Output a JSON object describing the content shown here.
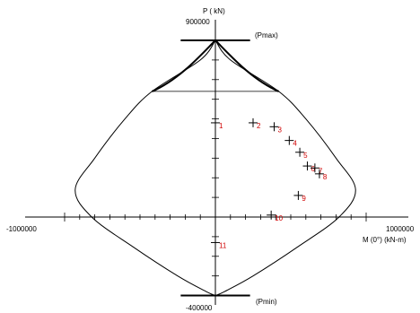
{
  "chart_data": {
    "type": "scatter",
    "ylabel": "P ( kN)",
    "xlabel": "M (0°) (kN-m)",
    "x_tick_labels": {
      "min": "-1000000",
      "max": "1000000"
    },
    "y_tick_labels": {
      "max": "900000",
      "min": "-400000"
    },
    "xlim": [
      -1000000,
      1000000
    ],
    "ylim": [
      -400000,
      900000
    ],
    "pmax_label": "(Pmax)",
    "pmin_label": "(Pmin)",
    "pmax_value": 900000,
    "pmin_value": -400000,
    "cutoff_value": 640000,
    "cutoff_moment": 420000,
    "cap_moment": 230000,
    "interaction_curve": [
      {
        "m": 0,
        "p": 900000
      },
      {
        "m": 100000,
        "p": 800000
      },
      {
        "m": 420000,
        "p": 640000
      },
      {
        "m": 600000,
        "p": 500000
      },
      {
        "m": 800000,
        "p": 300000
      },
      {
        "m": 930000,
        "p": 140000
      },
      {
        "m": 820000,
        "p": 0
      },
      {
        "m": 550000,
        "p": -150000
      },
      {
        "m": 250000,
        "p": -300000
      },
      {
        "m": 60000,
        "p": -380000
      },
      {
        "m": 0,
        "p": -400000
      }
    ],
    "points": [
      {
        "label": "1",
        "m": 0,
        "p": 480000
      },
      {
        "label": "2",
        "m": 250000,
        "p": 480000
      },
      {
        "label": "3",
        "m": 390000,
        "p": 460000
      },
      {
        "label": "4",
        "m": 490000,
        "p": 390000
      },
      {
        "label": "5",
        "m": 560000,
        "p": 330000
      },
      {
        "label": "6",
        "m": 610000,
        "p": 260000
      },
      {
        "label": "7",
        "m": 660000,
        "p": 250000
      },
      {
        "label": "8",
        "m": 690000,
        "p": 220000
      },
      {
        "label": "9",
        "m": 550000,
        "p": 110000
      },
      {
        "label": "10",
        "m": 370000,
        "p": 10000
      },
      {
        "label": "11",
        "m": 0,
        "p": -130000
      }
    ]
  }
}
